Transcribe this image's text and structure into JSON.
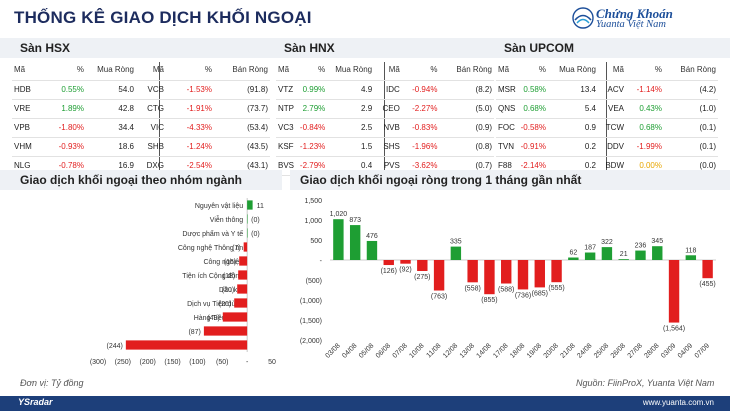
{
  "title": "THỐNG KÊ GIAO DỊCH KHỐI NGOẠI",
  "logo": {
    "line1": "Chứng Khoán",
    "line2": "Yuanta Việt Nam"
  },
  "colors": {
    "positive": "#1e9e33",
    "negative": "#e21e1e",
    "neutral": "#e8a600",
    "brand": "#1d4f9a",
    "header_text": "#1d2c5e"
  },
  "exchanges": [
    {
      "name": "Sàn HSX",
      "headers": [
        "Mã",
        "%",
        "Mua Ròng",
        "Mã",
        "%",
        "Bán Ròng"
      ],
      "rows": [
        {
          "buy_code": "HDB",
          "buy_pct": "0.55%",
          "buy_val": "54.0",
          "sell_code": "VCB",
          "sell_pct": "-1.53%",
          "sell_val": "(91.8)"
        },
        {
          "buy_code": "VRE",
          "buy_pct": "1.89%",
          "buy_val": "42.8",
          "sell_code": "CTG",
          "sell_pct": "-1.91%",
          "sell_val": "(73.7)"
        },
        {
          "buy_code": "VPB",
          "buy_pct": "-1.80%",
          "buy_val": "34.4",
          "sell_code": "VIC",
          "sell_pct": "-4.33%",
          "sell_val": "(53.4)"
        },
        {
          "buy_code": "VHM",
          "buy_pct": "-0.93%",
          "buy_val": "18.6",
          "sell_code": "SHB",
          "sell_pct": "-1.24%",
          "sell_val": "(43.5)"
        },
        {
          "buy_code": "NLG",
          "buy_pct": "-0.78%",
          "buy_val": "16.9",
          "sell_code": "DXG",
          "sell_pct": "-2.54%",
          "sell_val": "(43.1)"
        }
      ]
    },
    {
      "name": "Sàn HNX",
      "headers": [
        "Mã",
        "%",
        "Mua Ròng",
        "Mã",
        "%",
        "Bán Ròng"
      ],
      "rows": [
        {
          "buy_code": "VTZ",
          "buy_pct": "0.99%",
          "buy_val": "4.9",
          "sell_code": "IDC",
          "sell_pct": "-0.94%",
          "sell_val": "(8.2)"
        },
        {
          "buy_code": "NTP",
          "buy_pct": "2.79%",
          "buy_val": "2.9",
          "sell_code": "CEO",
          "sell_pct": "-2.27%",
          "sell_val": "(5.0)"
        },
        {
          "buy_code": "VC3",
          "buy_pct": "-0.84%",
          "buy_val": "2.5",
          "sell_code": "NVB",
          "sell_pct": "-0.83%",
          "sell_val": "(0.9)"
        },
        {
          "buy_code": "KSF",
          "buy_pct": "-1.23%",
          "buy_val": "1.5",
          "sell_code": "SHS",
          "sell_pct": "-1.96%",
          "sell_val": "(0.8)"
        },
        {
          "buy_code": "BVS",
          "buy_pct": "-2.79%",
          "buy_val": "0.4",
          "sell_code": "PVS",
          "sell_pct": "-3.62%",
          "sell_val": "(0.7)"
        }
      ]
    },
    {
      "name": "Sàn UPCOM",
      "headers": [
        "Mã",
        "%",
        "Mua Ròng",
        "Mã",
        "%",
        "Bán Ròng"
      ],
      "rows": [
        {
          "buy_code": "MSR",
          "buy_pct": "0.58%",
          "buy_val": "13.4",
          "sell_code": "ACV",
          "sell_pct": "-1.14%",
          "sell_val": "(4.2)"
        },
        {
          "buy_code": "QNS",
          "buy_pct": "0.68%",
          "buy_val": "5.4",
          "sell_code": "VEA",
          "sell_pct": "0.43%",
          "sell_val": "(1.0)"
        },
        {
          "buy_code": "FOC",
          "buy_pct": "-0.58%",
          "buy_val": "0.9",
          "sell_code": "TCW",
          "sell_pct": "0.68%",
          "sell_val": "(0.1)"
        },
        {
          "buy_code": "TVN",
          "buy_pct": "-0.91%",
          "buy_val": "0.2",
          "sell_code": "DDV",
          "sell_pct": "-1.99%",
          "sell_val": "(0.1)"
        },
        {
          "buy_code": "F88",
          "buy_pct": "-2.14%",
          "buy_val": "0.2",
          "sell_code": "BDW",
          "sell_pct": "0.00%",
          "sell_val": "(0.0)"
        }
      ]
    }
  ],
  "sector_chart_title": "Giao dịch khối ngoại theo nhóm ngành",
  "monthly_chart_title": "Giao dịch khối ngoại ròng trong 1 tháng gần nhất",
  "unit_note": "Đơn vị: Tỷ đồng",
  "source_note": "Nguồn: FiinProX, Yuanta Việt Nam",
  "footer": {
    "brand": "YSradar",
    "website": "www.yuanta.com.vn"
  },
  "chart_data": [
    {
      "type": "bar",
      "orientation": "horizontal",
      "title": "Giao dịch khối ngoại theo nhóm ngành",
      "categories": [
        "Nguyên vật liệu",
        "Viễn thông",
        "Dược phẩm và Y tế",
        "Công nghệ Thông tin",
        "Công nghiệp",
        "Tiện ích Cộng đồng",
        "Dầu khí",
        "Dịch vụ Tiêu dùng",
        "Hàng Tiêu dùng",
        "Tài chính",
        "Ngân hàng"
      ],
      "values": [
        11,
        0,
        0,
        -7,
        -16,
        -18,
        -20,
        -26,
        -49,
        -87,
        -244
      ],
      "value_labels": [
        "11",
        "(0)",
        "(0)",
        "(7)",
        "(16)",
        "(18)",
        "(20)",
        "(26)",
        "(49)",
        "(87)",
        "(244)"
      ],
      "xlim": [
        -300,
        50
      ],
      "xticks": [
        -300,
        -250,
        -200,
        -150,
        -100,
        -50,
        0,
        50
      ],
      "xtick_labels": [
        "(300)",
        "(250)",
        "(200)",
        "(150)",
        "(100)",
        "(50)",
        "-",
        "50"
      ]
    },
    {
      "type": "bar",
      "title": "Giao dịch khối ngoại ròng trong 1 tháng gần nhất",
      "categories": [
        "03/08",
        "04/08",
        "05/08",
        "06/08",
        "07/08",
        "10/08",
        "11/08",
        "12/08",
        "13/08",
        "14/08",
        "17/08",
        "18/08",
        "19/08",
        "20/08",
        "21/08",
        "24/08",
        "25/08",
        "26/08",
        "27/08",
        "28/08",
        "03/09",
        "04/09",
        "07/09"
      ],
      "values": [
        1020,
        873,
        476,
        -126,
        -92,
        -275,
        -763,
        335,
        -558,
        -855,
        -588,
        -736,
        -685,
        -555,
        62,
        187,
        322,
        21,
        236,
        345,
        -1564,
        118,
        -455
      ],
      "value_labels": [
        "1,020",
        "873",
        "476",
        "(126)",
        "(92)",
        "(275)",
        "(763)",
        "335",
        "(558)",
        "(855)",
        "(588)",
        "(736)",
        "(685)",
        "(555)",
        "62",
        "187",
        "322",
        "21",
        "236",
        "345",
        "(1,564)",
        "118",
        "(455)"
      ],
      "ylim": [
        -2000,
        1500
      ],
      "yticks": [
        1500,
        1000,
        500,
        0,
        -500,
        -1000,
        -1500,
        -2000
      ],
      "ytick_labels": [
        "1,500",
        "1,000",
        "500",
        "-",
        "(500)",
        "(1,000)",
        "(1,500)",
        "(2,000)"
      ]
    }
  ]
}
